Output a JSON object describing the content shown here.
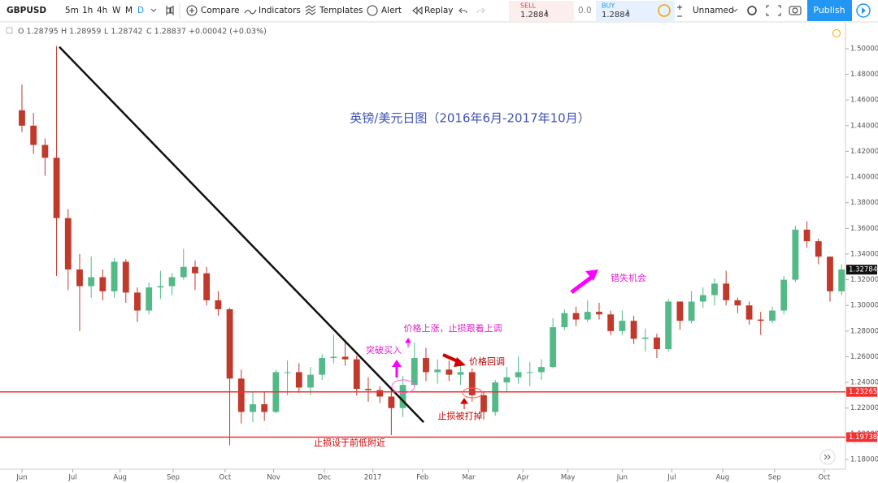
{
  "toolbar": {
    "symbol": "GBPUSD",
    "intervals": [
      "5m",
      "1h",
      "4h",
      "W",
      "M",
      "D"
    ],
    "compare": "Compare",
    "indicators": "Indicators",
    "templates": "Templates",
    "alert": "Alert",
    "replay": "Replay",
    "sell": "SELL",
    "sell_price": "1.2884",
    "sell_sup": "1",
    "spread": "0.0",
    "buy": "BUY",
    "buy_price": "1.2884",
    "buy_sup": "1",
    "layout": "Unnamed",
    "publish": "Publish"
  },
  "legend": {
    "open": "O 1.28795",
    "high": "H 1.28959",
    "low": "L 1.28742",
    "close": "C 1.28837",
    "change": "+0.00042 (+0.03%)"
  },
  "chart_data": {
    "type": "candlestick",
    "up_color": "#53b987",
    "down_color": "#c0392b",
    "categories": [
      null,
      null,
      null,
      null,
      null,
      null,
      null,
      null,
      null,
      null,
      null,
      null,
      null,
      null,
      null,
      null,
      null,
      null,
      null,
      null,
      null,
      null,
      null,
      null,
      null,
      null,
      null,
      null,
      null,
      null,
      null,
      null,
      null,
      null,
      null,
      null,
      null,
      null,
      null,
      null,
      null,
      null,
      null,
      null,
      null,
      null,
      null,
      null,
      null,
      null,
      null,
      null,
      null,
      null,
      null,
      null,
      null,
      null,
      null,
      null,
      null,
      null,
      null,
      null,
      null,
      null,
      null,
      null,
      null,
      null,
      null,
      null
    ],
    "open": [
      1.452,
      1.44,
      1.425,
      1.415,
      1.368,
      1.328,
      1.315,
      1.322,
      1.311,
      1.334,
      1.31,
      1.296,
      1.314,
      1.315,
      1.322,
      1.33,
      1.325,
      1.304,
      1.297,
      1.243,
      1.217,
      1.223,
      1.217,
      1.248,
      1.248,
      1.236,
      1.246,
      1.259,
      1.26,
      1.258,
      1.235,
      1.234,
      1.229,
      1.22,
      1.238,
      1.259,
      1.248,
      1.25,
      1.246,
      1.248,
      1.23,
      1.217,
      1.24,
      1.244,
      1.248,
      1.248,
      1.252,
      1.283,
      1.294,
      1.289,
      1.295,
      1.293,
      1.28,
      1.288,
      1.274,
      1.275,
      1.266,
      1.303,
      1.288,
      1.303,
      1.308,
      1.317,
      1.304,
      1.3,
      1.289,
      1.288,
      1.296,
      1.32,
      1.359,
      1.35,
      1.338,
      1.311
    ],
    "high": [
      1.472,
      1.45,
      1.43,
      1.502,
      1.375,
      1.34,
      1.338,
      1.328,
      1.337,
      1.336,
      1.314,
      1.318,
      1.327,
      1.325,
      1.344,
      1.335,
      1.33,
      1.311,
      1.298,
      1.25,
      1.233,
      1.233,
      1.25,
      1.257,
      1.255,
      1.252,
      1.262,
      1.277,
      1.271,
      1.261,
      1.244,
      1.237,
      1.234,
      1.245,
      1.271,
      1.267,
      1.258,
      1.257,
      1.255,
      1.251,
      1.233,
      1.242,
      1.252,
      1.26,
      1.256,
      1.258,
      1.29,
      1.297,
      1.299,
      1.304,
      1.302,
      1.296,
      1.296,
      1.292,
      1.282,
      1.278,
      1.305,
      1.303,
      1.311,
      1.314,
      1.321,
      1.327,
      1.306,
      1.303,
      1.295,
      1.299,
      1.323,
      1.362,
      1.3655,
      1.352,
      1.338,
      1.332
    ],
    "low": [
      1.435,
      1.418,
      1.401,
      1.323,
      1.312,
      1.28,
      1.306,
      1.304,
      1.306,
      1.302,
      1.287,
      1.293,
      1.305,
      1.308,
      1.32,
      1.312,
      1.3,
      1.292,
      1.191,
      1.208,
      1.209,
      1.21,
      1.216,
      1.23,
      1.232,
      1.23,
      1.242,
      1.255,
      1.253,
      1.23,
      1.225,
      1.224,
      1.199,
      1.213,
      1.237,
      1.241,
      1.239,
      1.241,
      1.238,
      1.225,
      1.211,
      1.214,
      1.233,
      1.239,
      1.237,
      1.242,
      1.251,
      1.281,
      1.284,
      1.287,
      1.289,
      1.277,
      1.277,
      1.27,
      1.264,
      1.259,
      1.264,
      1.281,
      1.286,
      1.298,
      1.3,
      1.3,
      1.294,
      1.285,
      1.277,
      1.286,
      1.293,
      1.318,
      1.345,
      1.332,
      1.303,
      1.308
    ],
    "close": [
      1.44,
      1.425,
      1.415,
      1.368,
      1.328,
      1.315,
      1.322,
      1.311,
      1.334,
      1.31,
      1.296,
      1.314,
      1.315,
      1.322,
      1.33,
      1.325,
      1.304,
      1.297,
      1.243,
      1.217,
      1.223,
      1.217,
      1.248,
      1.248,
      1.236,
      1.246,
      1.259,
      1.26,
      1.258,
      1.235,
      1.234,
      1.229,
      1.22,
      1.238,
      1.259,
      1.248,
      1.25,
      1.246,
      1.248,
      1.23,
      1.217,
      1.24,
      1.244,
      1.248,
      1.248,
      1.252,
      1.283,
      1.294,
      1.289,
      1.295,
      1.293,
      1.28,
      1.288,
      1.274,
      1.275,
      1.266,
      1.303,
      1.288,
      1.303,
      1.308,
      1.317,
      1.304,
      1.3,
      1.289,
      1.288,
      1.296,
      1.32,
      1.359,
      1.35,
      1.338,
      1.311,
      1.328
    ],
    "xlim": [
      -1.9,
      71.34
    ],
    "ylim": [
      1.1724,
      1.5202
    ],
    "xticks": [
      {
        "value": 0,
        "label": "Jun"
      },
      {
        "value": 4.4,
        "label": "Jul"
      },
      {
        "value": 8.5,
        "label": "Aug"
      },
      {
        "value": 13.1,
        "label": "Sep"
      },
      {
        "value": 17.6,
        "label": "Oct"
      },
      {
        "value": 21.8,
        "label": "Nov"
      },
      {
        "value": 26.2,
        "label": "Dec"
      },
      {
        "value": 30.4,
        "label": "2017"
      },
      {
        "value": 34.7,
        "label": "Feb"
      },
      {
        "value": 38.7,
        "label": "Mar"
      },
      {
        "value": 43.4,
        "label": "Apr"
      },
      {
        "value": 47.3,
        "label": "May"
      },
      {
        "value": 52,
        "label": "Jun"
      },
      {
        "value": 56.3,
        "label": "Jul"
      },
      {
        "value": 60.7,
        "label": "Aug"
      },
      {
        "value": 65.2,
        "label": "Sep"
      },
      {
        "value": 69.5,
        "label": "Oct"
      }
    ],
    "yticks": [
      {
        "value": 1.18,
        "label": "1.18000"
      },
      {
        "value": 1.2,
        "label": "1.20000"
      },
      {
        "value": 1.22,
        "label": "1.22000"
      },
      {
        "value": 1.24,
        "label": "1.24000"
      },
      {
        "value": 1.26,
        "label": "1.26000"
      },
      {
        "value": 1.28,
        "label": "1.28000"
      },
      {
        "value": 1.3,
        "label": "1.30000"
      },
      {
        "value": 1.32,
        "label": "1.32000"
      },
      {
        "value": 1.34,
        "label": "1.34000"
      },
      {
        "value": 1.36,
        "label": "1.36000"
      },
      {
        "value": 1.38,
        "label": "1.38000"
      },
      {
        "value": 1.4,
        "label": "1.40000"
      },
      {
        "value": 1.42,
        "label": "1.42000"
      },
      {
        "value": 1.44,
        "label": "1.44000"
      },
      {
        "value": 1.46,
        "label": "1.46000"
      },
      {
        "value": 1.48,
        "label": "1.48000"
      },
      {
        "value": 1.5,
        "label": "1.50000"
      }
    ],
    "trendline": {
      "x": [
        3.24,
        34.8
      ],
      "y": [
        1.5014,
        1.209
      ]
    },
    "hlines": [
      1.23265,
      1.19738
    ],
    "last_price": 1.32784,
    "title": "英镑/美元日图（2016年6月-2017年10月）",
    "annotations": {
      "breakout": "突破买入",
      "raise_stop": "价格上涨，止损跟着上调",
      "missed": "错失机会",
      "pullback": "价格回调",
      "stopped": "止损被打掉",
      "stop_set": "止损设于前低附近"
    }
  }
}
